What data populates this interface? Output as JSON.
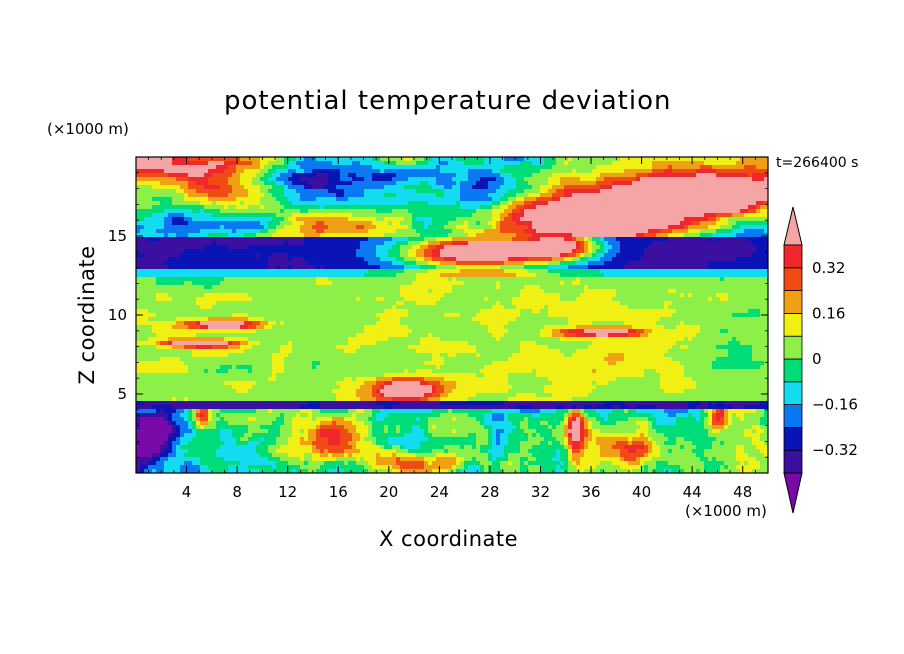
{
  "chart_data": {
    "type": "heatmap",
    "title": "potential temperature deviation",
    "time_label": "t=266400 s",
    "xlabel": "X coordinate",
    "ylabel": "Z coordinate",
    "x_unit": "(×1000 m)",
    "y_unit": "(×1000 m)",
    "xlim": [
      0,
      50
    ],
    "ylim": [
      0,
      20
    ],
    "x_ticks": [
      4,
      8,
      12,
      16,
      20,
      24,
      28,
      32,
      36,
      40,
      44,
      48
    ],
    "y_ticks": [
      5,
      10,
      15
    ],
    "colorbar": {
      "levels": [
        -0.4,
        -0.32,
        -0.24,
        -0.16,
        -0.08,
        0,
        0.08,
        0.16,
        0.24,
        0.32,
        0.4
      ],
      "tick_labels": [
        "0.32",
        "0.16",
        "0",
        "−0.16",
        "−0.32"
      ],
      "tick_values": [
        0.32,
        0.16,
        0,
        -0.16,
        -0.32
      ],
      "extend": "both",
      "colors": [
        "#7a0aa8",
        "#3b0fa0",
        "#0a14b4",
        "#0a78f0",
        "#14dcf0",
        "#00dc78",
        "#8cf048",
        "#f0f014",
        "#f0a014",
        "#f04b14",
        "#f0282d",
        "#f5a5a5"
      ]
    },
    "bands": [
      {
        "z": [
          18.2,
          20
        ],
        "value": 0.45,
        "note": "pink/purple mix"
      },
      {
        "z": [
          15.0,
          18.2
        ],
        "value": -0.42
      },
      {
        "z": [
          13.0,
          15.0
        ],
        "value": -0.3
      },
      {
        "z": [
          12.3,
          13.0
        ],
        "value": -0.1
      },
      {
        "z": [
          4.6,
          12.3
        ],
        "value": 0.04
      },
      {
        "z": [
          4.0,
          4.6
        ],
        "value": -0.3
      },
      {
        "z": [
          0,
          4.0
        ],
        "value": 0.0,
        "note": "mixed turbulent"
      }
    ]
  }
}
